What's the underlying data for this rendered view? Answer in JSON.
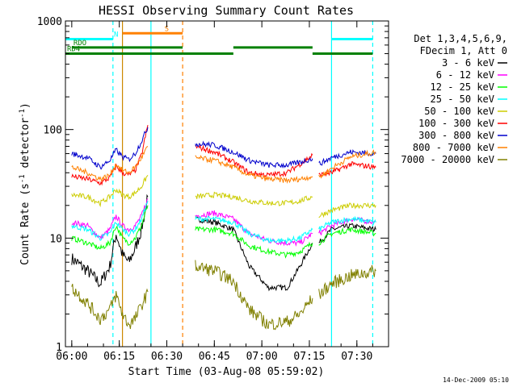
{
  "chart_data": {
    "type": "line",
    "title": "HESSI Observing Summary Count Rates",
    "xlabel": "Start Time (03-Aug-08 05:59:02)",
    "ylabel_main": "Count Rate (s",
    "ylabel_sup1": "-1",
    "ylabel_mid": " detector",
    "ylabel_sup2": "-1",
    "ylabel_end": ")",
    "yscale": "log",
    "xlim": [
      "05:58",
      "07:40"
    ],
    "ylim": [
      1,
      1000
    ],
    "x_ticks": [
      "06:00",
      "06:15",
      "06:30",
      "06:45",
      "07:00",
      "07:15",
      "07:30"
    ],
    "y_ticks": [
      "1",
      "10",
      "100",
      "1000"
    ],
    "footer": "14-Dec-2009 05:10",
    "legend": {
      "header": [
        "Det 1,3,4,5,6,9,",
        "FDecim 1, Att 0"
      ],
      "position": "right"
    },
    "series": [
      {
        "name": "3 - 6 keV",
        "color": "#000000",
        "segments": [
          {
            "x": [
              "06:00",
              "06:05",
              "06:09",
              "06:12",
              "06:14",
              "06:16",
              "06:18",
              "06:20",
              "06:22",
              "06:24"
            ],
            "y": [
              6.5,
              5,
              3.8,
              5.5,
              11,
              7,
              6,
              8,
              12,
              24
            ]
          },
          {
            "x": [
              "06:39",
              "06:45",
              "06:51",
              "06:56",
              "07:02",
              "07:08",
              "07:12",
              "07:16"
            ],
            "y": [
              15,
              14,
              12,
              5.5,
              3.5,
              3.5,
              5.5,
              9
            ]
          },
          {
            "x": [
              "07:18",
              "07:22",
              "07:28",
              "07:36"
            ],
            "y": [
              9,
              12,
              13,
              12
            ]
          }
        ]
      },
      {
        "name": "6 - 12 keV",
        "color": "#ff00ff",
        "segments": [
          {
            "x": [
              "06:00",
              "06:05",
              "06:09",
              "06:12",
              "06:14",
              "06:16",
              "06:18",
              "06:20",
              "06:22",
              "06:24"
            ],
            "y": [
              14,
              13,
              10,
              12,
              16,
              13,
              12,
              13,
              16,
              23
            ]
          },
          {
            "x": [
              "06:39",
              "06:45",
              "06:51",
              "06:56",
              "07:02",
              "07:08",
              "07:12",
              "07:16"
            ],
            "y": [
              16,
              17,
              15,
              11,
              9.5,
              9,
              9,
              11
            ]
          },
          {
            "x": [
              "07:18",
              "07:22",
              "07:28",
              "07:36"
            ],
            "y": [
              11,
              13,
              15,
              14
            ]
          }
        ]
      },
      {
        "name": "12 - 25 keV",
        "color": "#00ff00",
        "segments": [
          {
            "x": [
              "06:00",
              "06:05",
              "06:09",
              "06:12",
              "06:14",
              "06:16",
              "06:18",
              "06:20",
              "06:22",
              "06:24"
            ],
            "y": [
              10,
              9,
              8,
              9,
              13,
              10,
              9,
              10,
              13,
              20
            ]
          },
          {
            "x": [
              "06:39",
              "06:45",
              "06:51",
              "06:56",
              "07:02",
              "07:08",
              "07:12",
              "07:16"
            ],
            "y": [
              12,
              12,
              11,
              8.5,
              7.5,
              7,
              7.5,
              9
            ]
          },
          {
            "x": [
              "07:18",
              "07:22",
              "07:28",
              "07:36"
            ],
            "y": [
              9,
              11,
              12,
              11
            ]
          }
        ]
      },
      {
        "name": "25 - 50 keV",
        "color": "#00ffff",
        "segments": [
          {
            "x": [
              "06:00",
              "06:05",
              "06:09",
              "06:12",
              "06:14",
              "06:16",
              "06:18",
              "06:20",
              "06:22",
              "06:24"
            ],
            "y": [
              13,
              12,
              10,
              11,
              14,
              12,
              11,
              12,
              15,
              22
            ]
          },
          {
            "x": [
              "06:39",
              "06:45",
              "06:51",
              "06:56",
              "07:02",
              "07:08",
              "07:12",
              "07:16"
            ],
            "y": [
              15,
              15,
              14,
              11,
              9.5,
              9.5,
              10,
              12
            ]
          },
          {
            "x": [
              "07:18",
              "07:22",
              "07:28",
              "07:36"
            ],
            "y": [
              12,
              14,
              15,
              14
            ]
          }
        ]
      },
      {
        "name": "50 - 100 keV",
        "color": "#cccc00",
        "segments": [
          {
            "x": [
              "06:00",
              "06:05",
              "06:09",
              "06:12",
              "06:14",
              "06:16",
              "06:18",
              "06:20",
              "06:22",
              "06:24"
            ],
            "y": [
              25,
              24,
              21,
              24,
              28,
              25,
              24,
              26,
              30,
              38
            ]
          },
          {
            "x": [
              "06:39",
              "06:45",
              "06:51",
              "06:56",
              "07:02",
              "07:08",
              "07:12",
              "07:16"
            ],
            "y": [
              24,
              25,
              24,
              22,
              21,
              21,
              22,
              24
            ]
          },
          {
            "x": [
              "07:18",
              "07:22",
              "07:28",
              "07:36"
            ],
            "y": [
              16,
              18,
              20,
              20
            ]
          }
        ]
      },
      {
        "name": "100 - 300 keV",
        "color": "#ff0000",
        "segments": [
          {
            "x": [
              "06:00",
              "06:05",
              "06:09",
              "06:12",
              "06:14",
              "06:16",
              "06:18",
              "06:20",
              "06:22",
              "06:24"
            ],
            "y": [
              37,
              35,
              32,
              36,
              46,
              40,
              38,
              42,
              58,
              110
            ]
          },
          {
            "x": [
              "06:39",
              "06:45",
              "06:51",
              "06:56",
              "07:02",
              "07:08",
              "07:12",
              "07:16"
            ],
            "y": [
              70,
              62,
              50,
              40,
              38,
              40,
              48,
              58
            ]
          },
          {
            "x": [
              "07:18",
              "07:22",
              "07:28",
              "07:36"
            ],
            "y": [
              38,
              40,
              48,
              45
            ]
          }
        ]
      },
      {
        "name": "300 - 800 keV",
        "color": "#0000cc",
        "segments": [
          {
            "x": [
              "06:00",
              "06:05",
              "06:09",
              "06:12",
              "06:14",
              "06:16",
              "06:18",
              "06:20",
              "06:22",
              "06:24"
            ],
            "y": [
              60,
              55,
              45,
              52,
              65,
              56,
              53,
              60,
              78,
              105
            ]
          },
          {
            "x": [
              "06:39",
              "06:45",
              "06:51",
              "06:56",
              "07:02",
              "07:08",
              "07:12",
              "07:16"
            ],
            "y": [
              74,
              72,
              62,
              52,
              47,
              47,
              50,
              54
            ]
          },
          {
            "x": [
              "07:18",
              "07:22",
              "07:28",
              "07:36"
            ],
            "y": [
              48,
              55,
              62,
              60
            ]
          }
        ]
      },
      {
        "name": "800 - 7000 keV",
        "color": "#ff8000",
        "segments": [
          {
            "x": [
              "06:00",
              "06:05",
              "06:09",
              "06:12",
              "06:14",
              "06:16",
              "06:18",
              "06:20",
              "06:22",
              "06:24"
            ],
            "y": [
              45,
              40,
              35,
              38,
              48,
              42,
              40,
              45,
              55,
              70
            ]
          },
          {
            "x": [
              "06:39",
              "06:45",
              "06:51",
              "06:56",
              "07:02",
              "07:08",
              "07:12",
              "07:16"
            ],
            "y": [
              55,
              52,
              45,
              38,
              35,
              34,
              35,
              37
            ]
          },
          {
            "x": [
              "07:18",
              "07:22",
              "07:28",
              "07:36"
            ],
            "y": [
              36,
              44,
              56,
              62
            ]
          }
        ]
      },
      {
        "name": "7000 - 20000 keV",
        "color": "#808000",
        "segments": [
          {
            "x": [
              "06:00",
              "06:05",
              "06:09",
              "06:12",
              "06:14",
              "06:16",
              "06:18",
              "06:20",
              "06:22",
              "06:24"
            ],
            "y": [
              3.5,
              2.5,
              1.8,
              2.2,
              3,
              2,
              1.6,
              1.8,
              2.4,
              3.2
            ]
          },
          {
            "x": [
              "06:39",
              "06:45",
              "06:51",
              "06:56",
              "07:02",
              "07:08",
              "07:12",
              "07:16"
            ],
            "y": [
              5.5,
              5,
              4,
              2.2,
              1.6,
              1.7,
              2,
              2.8
            ]
          },
          {
            "x": [
              "07:18",
              "07:22",
              "07:28",
              "07:36"
            ],
            "y": [
              3,
              3.8,
              4.5,
              5
            ]
          }
        ]
      }
    ],
    "flag_bars": [
      {
        "label": "S",
        "color": "#ff8000",
        "segments": [
          [
            "06:16",
            "06:35"
          ]
        ],
        "level": 770
      },
      {
        "label": "N",
        "color": "#00ffff",
        "segments": [
          [
            "05:58",
            "06:13"
          ],
          [
            "07:22",
            "07:35"
          ]
        ],
        "level": 680
      },
      {
        "label": "RDO",
        "color": "#008000",
        "segments": [
          [
            "06:00",
            "06:35"
          ],
          [
            "06:51",
            "07:16"
          ]
        ],
        "level": 570
      },
      {
        "label": "RD4",
        "color": "#008000",
        "segments": [
          [
            "05:58",
            "06:35"
          ],
          [
            "06:35",
            "06:51"
          ],
          [
            "07:16",
            "07:35"
          ]
        ],
        "level": 500
      }
    ],
    "markers": [
      {
        "x": "06:13",
        "color": "#00ffff",
        "style": "dashed"
      },
      {
        "x": "06:16",
        "color": "#cc8800",
        "style": "solid"
      },
      {
        "x": "06:25",
        "color": "#00ffff",
        "style": "solid"
      },
      {
        "x": "06:35",
        "color": "#ff8000",
        "style": "dashed"
      },
      {
        "x": "07:22",
        "color": "#00ffff",
        "style": "solid"
      },
      {
        "x": "07:35",
        "color": "#00ffff",
        "style": "dashed"
      }
    ]
  }
}
